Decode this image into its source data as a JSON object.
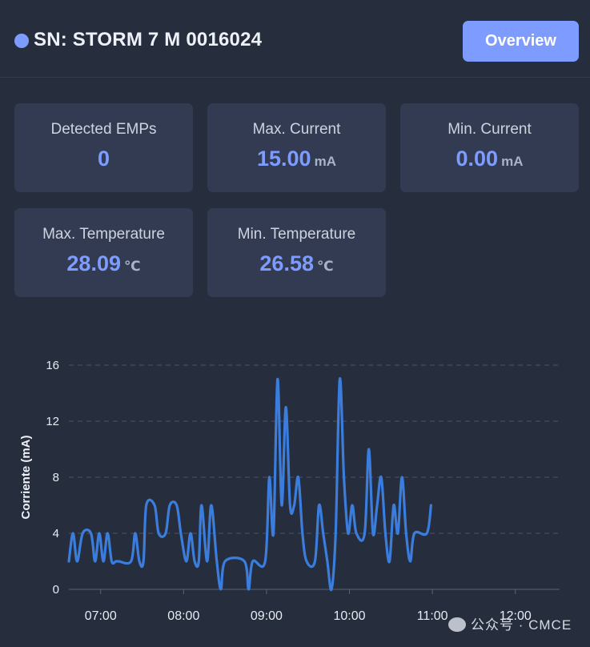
{
  "header": {
    "title": "SN: STORM 7 M 0016024",
    "overview_label": "Overview",
    "status_color": "#7e9cff"
  },
  "stats": [
    {
      "label": "Detected EMPs",
      "value": "0",
      "unit": ""
    },
    {
      "label": "Max. Current",
      "value": "15.00",
      "unit": "mA"
    },
    {
      "label": "Min. Current",
      "value": "0.00",
      "unit": "mA"
    },
    {
      "label": "Max. Temperature",
      "value": "28.09",
      "unit": "℃"
    },
    {
      "label": "Min. Temperature",
      "value": "26.58",
      "unit": "℃"
    }
  ],
  "chart_data": {
    "type": "line",
    "title": "",
    "xlabel": "",
    "ylabel": "Corriente (mA)",
    "ylim": [
      0,
      16
    ],
    "yticks": [
      0,
      4,
      8,
      12,
      16
    ],
    "xlim": [
      "06:37",
      "12:32"
    ],
    "xticks": [
      "07:00",
      "08:00",
      "09:00",
      "10:00",
      "11:00",
      "12:00"
    ],
    "grid": "horizontal-dashed",
    "line_color": "#3b7ddd",
    "series": [
      {
        "values": [
          [
            "06:37",
            2
          ],
          [
            "06:40",
            4
          ],
          [
            "06:43",
            2
          ],
          [
            "06:47",
            4
          ],
          [
            "06:53",
            4
          ],
          [
            "06:56",
            2
          ],
          [
            "06:59",
            4
          ],
          [
            "07:02",
            2
          ],
          [
            "07:05",
            4
          ],
          [
            "07:08",
            2
          ],
          [
            "07:11",
            2
          ],
          [
            "07:13",
            2
          ],
          [
            "07:22",
            2
          ],
          [
            "07:25",
            4
          ],
          [
            "07:28",
            2
          ],
          [
            "07:31",
            2
          ],
          [
            "07:33",
            6
          ],
          [
            "07:39",
            6
          ],
          [
            "07:42",
            4
          ],
          [
            "07:47",
            4
          ],
          [
            "07:50",
            6
          ],
          [
            "07:55",
            6
          ],
          [
            "07:58",
            4
          ],
          [
            "08:02",
            2
          ],
          [
            "08:05",
            4
          ],
          [
            "08:08",
            2
          ],
          [
            "08:11",
            2
          ],
          [
            "08:13",
            6
          ],
          [
            "08:17",
            2
          ],
          [
            "08:20",
            6
          ],
          [
            "08:24",
            2
          ],
          [
            "08:27",
            0
          ],
          [
            "08:30",
            2
          ],
          [
            "08:44",
            2
          ],
          [
            "08:47",
            0
          ],
          [
            "08:50",
            2
          ],
          [
            "08:59",
            2
          ],
          [
            "09:02",
            8
          ],
          [
            "09:05",
            4
          ],
          [
            "09:08",
            15
          ],
          [
            "09:11",
            6
          ],
          [
            "09:14",
            13
          ],
          [
            "09:17",
            6
          ],
          [
            "09:20",
            6
          ],
          [
            "09:23",
            8
          ],
          [
            "09:26",
            4
          ],
          [
            "09:29",
            2
          ],
          [
            "09:35",
            2
          ],
          [
            "09:38",
            6
          ],
          [
            "09:41",
            4
          ],
          [
            "09:44",
            2
          ],
          [
            "09:47",
            0
          ],
          [
            "09:50",
            4
          ],
          [
            "09:53",
            15
          ],
          [
            "09:56",
            8
          ],
          [
            "09:59",
            4
          ],
          [
            "10:02",
            6
          ],
          [
            "10:05",
            4
          ],
          [
            "10:11",
            4
          ],
          [
            "10:14",
            10
          ],
          [
            "10:17",
            4
          ],
          [
            "10:20",
            6
          ],
          [
            "10:23",
            8
          ],
          [
            "10:26",
            4
          ],
          [
            "10:29",
            2
          ],
          [
            "10:32",
            6
          ],
          [
            "10:35",
            4
          ],
          [
            "10:38",
            8
          ],
          [
            "10:41",
            4
          ],
          [
            "10:44",
            2
          ],
          [
            "10:47",
            4
          ],
          [
            "10:56",
            4
          ],
          [
            "10:59",
            6
          ]
        ]
      }
    ]
  },
  "watermark": {
    "text": "公众号 · CMCE"
  }
}
